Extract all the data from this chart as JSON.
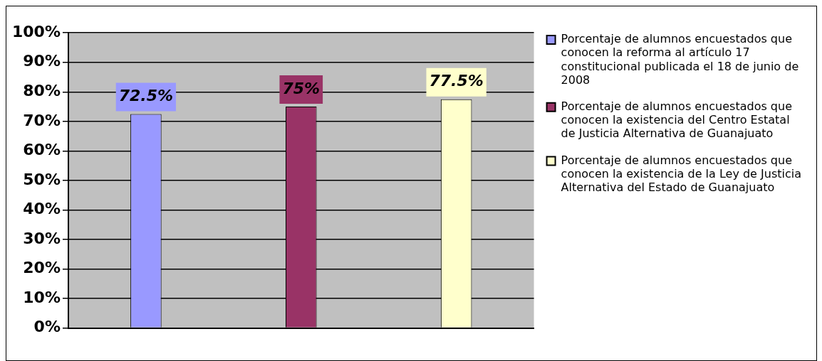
{
  "chart_data": {
    "type": "bar",
    "categories": [
      null,
      null,
      null
    ],
    "series": [
      {
        "name": "Porcentaje de alumnos encuestados que conocen la reforma al artículo 17 constitucional publicada el 18 de junio de 2008",
        "color": "#9999ff",
        "values": [
          72.5,
          null,
          null
        ],
        "value_labels": [
          "72.5%",
          null,
          null
        ]
      },
      {
        "name": "Porcentaje de alumnos encuestados que conocen la existencia del Centro Estatal de Justicia Alternativa de Guanajuato",
        "color": "#993366",
        "values": [
          null,
          75,
          null
        ],
        "value_labels": [
          null,
          "75%",
          null
        ]
      },
      {
        "name": "Porcentaje de alumnos encuestados que conocen la existencia de la Ley de Justicia Alternativa del Estado de Guanajuato",
        "color": "#ffffcc",
        "values": [
          null,
          null,
          77.5
        ],
        "value_labels": [
          null,
          null,
          "77.5%"
        ]
      }
    ],
    "ylim": [
      0,
      100
    ],
    "yticks": [
      {
        "value": 0,
        "label": "0%"
      },
      {
        "value": 10,
        "label": "10%"
      },
      {
        "value": 20,
        "label": "20%"
      },
      {
        "value": 30,
        "label": "30%"
      },
      {
        "value": 40,
        "label": "40%"
      },
      {
        "value": 50,
        "label": "50%"
      },
      {
        "value": 60,
        "label": "60%"
      },
      {
        "value": 70,
        "label": "70%"
      },
      {
        "value": 80,
        "label": "80%"
      },
      {
        "value": 90,
        "label": "90%"
      },
      {
        "value": 100,
        "label": "100%"
      }
    ],
    "grid": "y",
    "legend": "right"
  }
}
